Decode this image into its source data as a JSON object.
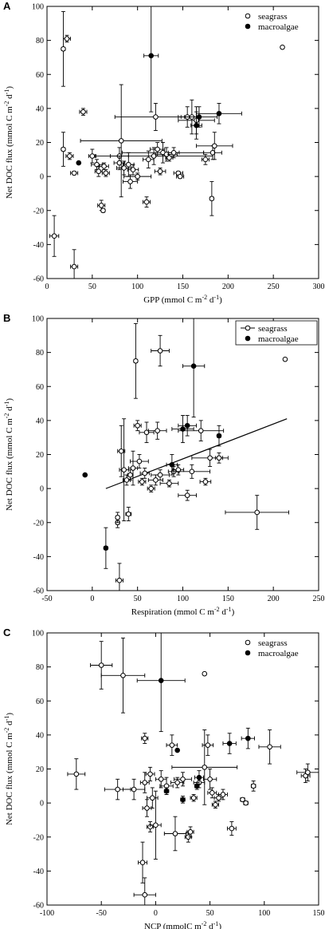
{
  "chart_data": [
    {
      "panel": "A",
      "type": "scatter",
      "xlabel": "GPP (mmol C m⁻² d⁻¹)",
      "ylabel": "Net DOC flux (mmol C m⁻² d⁻¹)",
      "xlim": [
        0,
        300
      ],
      "ylim": [
        -60,
        100
      ],
      "xticks": [
        0,
        50,
        100,
        150,
        200,
        250,
        300
      ],
      "yticks": [
        -60,
        -40,
        -20,
        0,
        20,
        40,
        60,
        80,
        100
      ],
      "legend": {
        "position": "top-right",
        "entries": [
          "seagrass",
          "macroalgae"
        ]
      },
      "series": [
        {
          "name": "seagrass",
          "marker": "open",
          "points": [
            {
              "x": 18,
              "y": 75,
              "ex": 2,
              "ey": 22
            },
            {
              "x": 22,
              "y": 81,
              "ex": 4,
              "ey": 2
            },
            {
              "x": 8,
              "y": -35,
              "ex": 5,
              "ey": 12
            },
            {
              "x": 30,
              "y": -53,
              "ex": 4,
              "ey": 10
            },
            {
              "x": 18,
              "y": 16,
              "ex": 2,
              "ey": 10
            },
            {
              "x": 25,
              "y": 12,
              "ex": 4,
              "ey": 2
            },
            {
              "x": 30,
              "y": 2,
              "ex": 4,
              "ey": 1
            },
            {
              "x": 40,
              "y": 38,
              "ex": 4,
              "ey": 2
            },
            {
              "x": 50,
              "y": 12,
              "ex": 4,
              "ey": 4
            },
            {
              "x": 55,
              "y": 7,
              "ex": 6,
              "ey": 3
            },
            {
              "x": 57,
              "y": 3,
              "ex": 4,
              "ey": 3
            },
            {
              "x": 60,
              "y": -17,
              "ex": 4,
              "ey": 3
            },
            {
              "x": 62,
              "y": -20,
              "ex": 2,
              "ey": 1
            },
            {
              "x": 63,
              "y": 6,
              "ex": 5,
              "ey": 2
            },
            {
              "x": 65,
              "y": 2,
              "ex": 4,
              "ey": 2
            },
            {
              "x": 80,
              "y": 12,
              "ex": 10,
              "ey": 5
            },
            {
              "x": 80,
              "y": 8,
              "ex": 6,
              "ey": 4
            },
            {
              "x": 82,
              "y": 21,
              "ex": 45,
              "ey": 33
            },
            {
              "x": 85,
              "y": 5,
              "ex": 8,
              "ey": 4
            },
            {
              "x": 90,
              "y": 7,
              "ex": 6,
              "ey": 7
            },
            {
              "x": 92,
              "y": -3,
              "ex": 8,
              "ey": 4
            },
            {
              "x": 95,
              "y": 4,
              "ex": 6,
              "ey": 3
            },
            {
              "x": 100,
              "y": 0,
              "ex": 15,
              "ey": 2
            },
            {
              "x": 110,
              "y": -15,
              "ex": 4,
              "ey": 3
            },
            {
              "x": 112,
              "y": 10,
              "ex": 6,
              "ey": 5
            },
            {
              "x": 118,
              "y": 12,
              "ex": 65,
              "ey": 5
            },
            {
              "x": 120,
              "y": 35,
              "ex": 45,
              "ey": 8
            },
            {
              "x": 122,
              "y": 16,
              "ex": 8,
              "ey": 4
            },
            {
              "x": 125,
              "y": 3,
              "ex": 6,
              "ey": 2
            },
            {
              "x": 128,
              "y": 14,
              "ex": 45,
              "ey": 6
            },
            {
              "x": 132,
              "y": 13,
              "ex": 12,
              "ey": 4
            },
            {
              "x": 135,
              "y": 11,
              "ex": 4,
              "ey": 2
            },
            {
              "x": 140,
              "y": 14,
              "ex": 6,
              "ey": 3
            },
            {
              "x": 145,
              "y": 2,
              "ex": 5,
              "ey": 1
            },
            {
              "x": 147,
              "y": 0,
              "ex": 4,
              "ey": 1
            },
            {
              "x": 155,
              "y": 35,
              "ex": 10,
              "ey": 6
            },
            {
              "x": 160,
              "y": 35,
              "ex": 8,
              "ey": 10
            },
            {
              "x": 165,
              "y": 33,
              "ex": 20,
              "ey": 8
            },
            {
              "x": 175,
              "y": 10,
              "ex": 4,
              "ey": 3
            },
            {
              "x": 182,
              "y": -13,
              "ex": 2,
              "ey": 10
            },
            {
              "x": 183,
              "y": 14,
              "ex": 10,
              "ey": 4
            },
            {
              "x": 185,
              "y": 18,
              "ex": 20,
              "ey": 8
            },
            {
              "x": 260,
              "y": 76,
              "ex": 0,
              "ey": 0
            }
          ]
        },
        {
          "name": "macroalgae",
          "marker": "filled",
          "points": [
            {
              "x": 115,
              "y": 71,
              "ex": 8,
              "ey": 33
            },
            {
              "x": 35,
              "y": 8,
              "ex": 0,
              "ey": 0
            },
            {
              "x": 165,
              "y": 30,
              "ex": 6,
              "ey": 8
            },
            {
              "x": 168,
              "y": 35,
              "ex": 20,
              "ey": 6
            },
            {
              "x": 190,
              "y": 37,
              "ex": 25,
              "ey": 6
            }
          ]
        }
      ]
    },
    {
      "panel": "B",
      "type": "scatter",
      "xlabel": "Respiration (mmol C m⁻² d⁻¹)",
      "ylabel": "Net DOC flux (mmol C m⁻² d⁻¹)",
      "xlim": [
        -50,
        250
      ],
      "ylim": [
        -60,
        100
      ],
      "xticks": [
        -50,
        0,
        50,
        100,
        150,
        200,
        250
      ],
      "yticks": [
        -60,
        -40,
        -20,
        0,
        20,
        40,
        60,
        80,
        100
      ],
      "legend": {
        "position": "top-right",
        "entries": [
          "seagrass",
          "macroalgae"
        ]
      },
      "regression": {
        "x": [
          15,
          215
        ],
        "y": [
          0,
          41
        ]
      },
      "series": [
        {
          "name": "seagrass",
          "marker": "open",
          "points": [
            {
              "x": 48,
              "y": 75,
              "ex": 2,
              "ey": 22
            },
            {
              "x": 75,
              "y": 81,
              "ex": 10,
              "ey": 9
            },
            {
              "x": 30,
              "y": -54,
              "ex": 4,
              "ey": 10
            },
            {
              "x": 28,
              "y": -20,
              "ex": 2,
              "ey": 3
            },
            {
              "x": 28,
              "y": -17,
              "ex": 2,
              "ey": 3
            },
            {
              "x": 40,
              "y": -15,
              "ex": 3,
              "ey": 4
            },
            {
              "x": 32,
              "y": 22,
              "ex": 4,
              "ey": 15
            },
            {
              "x": 35,
              "y": 11,
              "ex": 5,
              "ey": 30
            },
            {
              "x": 38,
              "y": 5,
              "ex": 4,
              "ey": 3
            },
            {
              "x": 42,
              "y": 8,
              "ex": 3,
              "ey": 3
            },
            {
              "x": 45,
              "y": 12,
              "ex": 5,
              "ey": 10
            },
            {
              "x": 50,
              "y": 37,
              "ex": 4,
              "ey": 3
            },
            {
              "x": 52,
              "y": 16,
              "ex": 10,
              "ey": 4
            },
            {
              "x": 55,
              "y": 4,
              "ex": 4,
              "ey": 2
            },
            {
              "x": 58,
              "y": 9,
              "ex": 5,
              "ey": 3
            },
            {
              "x": 60,
              "y": 33,
              "ex": 8,
              "ey": 6
            },
            {
              "x": 65,
              "y": 0,
              "ex": 4,
              "ey": 2
            },
            {
              "x": 70,
              "y": 5,
              "ex": 8,
              "ey": 3
            },
            {
              "x": 72,
              "y": 34,
              "ex": 10,
              "ey": 5
            },
            {
              "x": 75,
              "y": 8,
              "ex": 10,
              "ey": 3
            },
            {
              "x": 85,
              "y": 3,
              "ex": 10,
              "ey": 2
            },
            {
              "x": 90,
              "y": 10,
              "ex": 6,
              "ey": 3
            },
            {
              "x": 95,
              "y": 11,
              "ex": 6,
              "ey": 3
            },
            {
              "x": 105,
              "y": -4,
              "ex": 10,
              "ey": 3
            },
            {
              "x": 110,
              "y": 10,
              "ex": 20,
              "ey": 4
            },
            {
              "x": 120,
              "y": 34,
              "ex": 25,
              "ey": 6
            },
            {
              "x": 125,
              "y": 4,
              "ex": 6,
              "ey": 2
            },
            {
              "x": 130,
              "y": 18,
              "ex": 20,
              "ey": 5
            },
            {
              "x": 140,
              "y": 18,
              "ex": 4,
              "ey": 3
            },
            {
              "x": 182,
              "y": -14,
              "ex": 35,
              "ey": 10
            },
            {
              "x": 213,
              "y": 76,
              "ex": 0,
              "ey": 0
            }
          ]
        },
        {
          "name": "macroalgae",
          "marker": "filled",
          "points": [
            {
              "x": -8,
              "y": 8,
              "ex": 0,
              "ey": 0
            },
            {
              "x": 15,
              "y": -35,
              "ex": 2,
              "ey": 12
            },
            {
              "x": 88,
              "y": 14,
              "ex": 6,
              "ey": 6
            },
            {
              "x": 100,
              "y": 35,
              "ex": 12,
              "ey": 8
            },
            {
              "x": 105,
              "y": 37,
              "ex": 10,
              "ey": 6
            },
            {
              "x": 112,
              "y": 72,
              "ex": 12,
              "ey": 30
            },
            {
              "x": 140,
              "y": 31,
              "ex": 2,
              "ey": 6
            }
          ]
        }
      ]
    },
    {
      "panel": "C",
      "type": "scatter",
      "xlabel": "NCP (mmolC m⁻² d⁻¹)",
      "ylabel": "Net DOC flux (mmol C m⁻² d⁻¹)",
      "xlim": [
        -100,
        150
      ],
      "ylim": [
        -60,
        100
      ],
      "xticks": [
        -100,
        -50,
        0,
        50,
        100,
        150
      ],
      "yticks": [
        -60,
        -40,
        -20,
        0,
        20,
        40,
        60,
        80,
        100
      ],
      "legend": {
        "position": "top-right",
        "entries": [
          "seagrass",
          "macroalgae"
        ]
      },
      "series": [
        {
          "name": "seagrass",
          "marker": "open",
          "points": [
            {
              "x": -50,
              "y": 81,
              "ex": 10,
              "ey": 14
            },
            {
              "x": -30,
              "y": 75,
              "ex": 20,
              "ey": 22
            },
            {
              "x": -73,
              "y": 17,
              "ex": 8,
              "ey": 9
            },
            {
              "x": -10,
              "y": -54,
              "ex": 10,
              "ey": 10
            },
            {
              "x": -12,
              "y": -35,
              "ex": 4,
              "ey": 12
            },
            {
              "x": -10,
              "y": 38,
              "ex": 3,
              "ey": 3
            },
            {
              "x": -5,
              "y": 17,
              "ex": 4,
              "ey": 4
            },
            {
              "x": -35,
              "y": 8,
              "ex": 12,
              "ey": 6
            },
            {
              "x": -20,
              "y": 8,
              "ex": 10,
              "ey": 6
            },
            {
              "x": -10,
              "y": 12,
              "ex": 4,
              "ey": 6
            },
            {
              "x": -8,
              "y": -3,
              "ex": 4,
              "ey": 5
            },
            {
              "x": -5,
              "y": -14,
              "ex": 3,
              "ey": 3
            },
            {
              "x": -3,
              "y": 3,
              "ex": 5,
              "ey": 6
            },
            {
              "x": 0,
              "y": -13,
              "ex": 5,
              "ey": 20
            },
            {
              "x": 5,
              "y": 14,
              "ex": 5,
              "ey": 5
            },
            {
              "x": 10,
              "y": 10,
              "ex": 6,
              "ey": 5
            },
            {
              "x": 15,
              "y": 34,
              "ex": 5,
              "ey": 6
            },
            {
              "x": 18,
              "y": -18,
              "ex": 10,
              "ey": 10
            },
            {
              "x": 20,
              "y": 12,
              "ex": 6,
              "ey": 3
            },
            {
              "x": 25,
              "y": 14,
              "ex": 8,
              "ey": 4
            },
            {
              "x": 30,
              "y": -20,
              "ex": 3,
              "ey": 3
            },
            {
              "x": 32,
              "y": -17,
              "ex": 3,
              "ey": 3
            },
            {
              "x": 35,
              "y": 3,
              "ex": 3,
              "ey": 2
            },
            {
              "x": 40,
              "y": 12,
              "ex": 5,
              "ey": 3
            },
            {
              "x": 45,
              "y": 21,
              "ex": 30,
              "ey": 22
            },
            {
              "x": 48,
              "y": 34,
              "ex": 5,
              "ey": 6
            },
            {
              "x": 50,
              "y": 14,
              "ex": 6,
              "ey": 6
            },
            {
              "x": 52,
              "y": 6,
              "ex": 4,
              "ey": 3
            },
            {
              "x": 55,
              "y": -1,
              "ex": 3,
              "ey": 2
            },
            {
              "x": 58,
              "y": 3,
              "ex": 4,
              "ey": 2
            },
            {
              "x": 62,
              "y": 5,
              "ex": 4,
              "ey": 3
            },
            {
              "x": 70,
              "y": -15,
              "ex": 4,
              "ey": 4
            },
            {
              "x": 80,
              "y": 2,
              "ex": 2,
              "ey": 1
            },
            {
              "x": 83,
              "y": 0,
              "ex": 2,
              "ey": 1
            },
            {
              "x": 90,
              "y": 10,
              "ex": 2,
              "ey": 3
            },
            {
              "x": 105,
              "y": 33,
              "ex": 10,
              "ey": 10
            },
            {
              "x": 138,
              "y": 16,
              "ex": 4,
              "ey": 4
            },
            {
              "x": 140,
              "y": 18,
              "ex": 10,
              "ey": 5
            },
            {
              "x": 45,
              "y": 76,
              "ex": 0,
              "ey": 0
            }
          ]
        },
        {
          "name": "macroalgae",
          "marker": "filled",
          "points": [
            {
              "x": 5,
              "y": 72,
              "ex": 22,
              "ey": 30
            },
            {
              "x": 20,
              "y": 31,
              "ex": 0,
              "ey": 0
            },
            {
              "x": 40,
              "y": 15,
              "ex": 4,
              "ey": 4
            },
            {
              "x": 68,
              "y": 35,
              "ex": 6,
              "ey": 6
            },
            {
              "x": 85,
              "y": 38,
              "ex": 6,
              "ey": 6
            },
            {
              "x": 10,
              "y": 7,
              "ex": 2,
              "ey": 2
            },
            {
              "x": 25,
              "y": 2,
              "ex": 2,
              "ey": 2
            },
            {
              "x": 38,
              "y": 10,
              "ex": 2,
              "ey": 2
            }
          ]
        }
      ]
    }
  ]
}
